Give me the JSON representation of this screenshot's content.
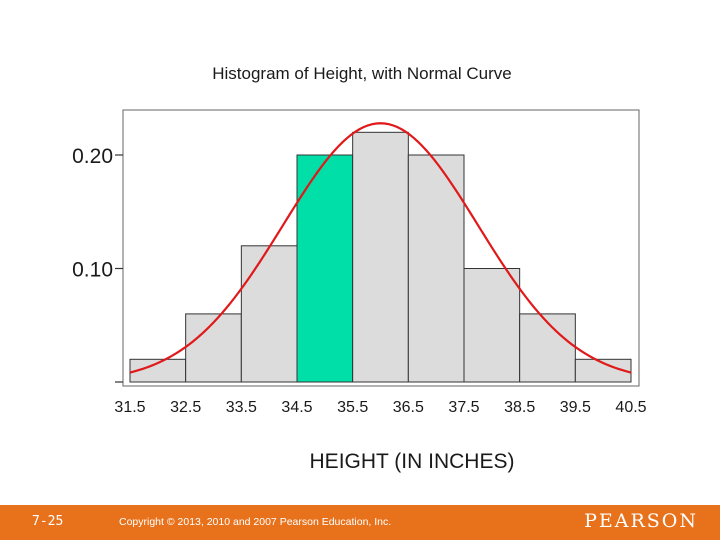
{
  "chart_data": {
    "type": "bar",
    "title": "Histogram of Height, with Normal Curve",
    "xlabel": "HEIGHT (IN INCHES)",
    "ylabel": "",
    "bin_edges": [
      31.5,
      32.5,
      33.5,
      34.5,
      35.5,
      36.5,
      37.5,
      38.5,
      39.5,
      40.5
    ],
    "values": [
      0.02,
      0.06,
      0.12,
      0.2,
      0.22,
      0.2,
      0.1,
      0.06,
      0.02
    ],
    "highlight_bin": 3,
    "yticks": [
      {
        "value": 0.1,
        "label": "0.10"
      },
      {
        "value": 0.2,
        "label": "0.20"
      }
    ],
    "xlim": [
      31.5,
      40.5
    ],
    "ylim": [
      0,
      0.24
    ],
    "normal_curve": {
      "mean": 36.0,
      "sd": 1.75
    },
    "colors": {
      "bar": "#dcdcdc",
      "highlight": "#00dfa8",
      "curve": "#e0191a",
      "edge": "#333333"
    },
    "grid": false
  },
  "footer": {
    "slide_number": "7-25",
    "copyright": "Copyright © 2013, 2010 and 2007 Pearson Education, Inc.",
    "logo": "PEARSON"
  }
}
